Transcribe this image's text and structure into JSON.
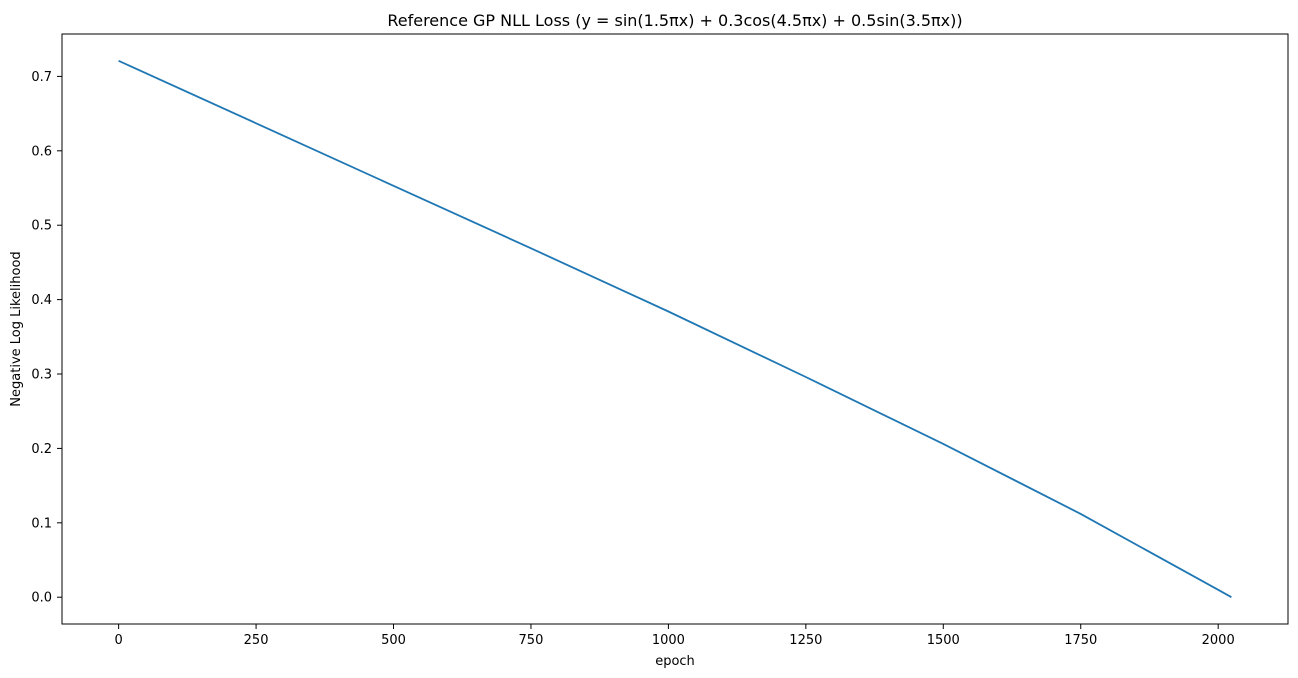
{
  "chart_data": {
    "type": "line",
    "title": "Reference GP NLL Loss (y = sin(1.5πx) + 0.3cos(4.5πx) + 0.5sin(3.5πx))",
    "xlabel": "epoch",
    "ylabel": "Negative Log Likelihood",
    "xlim": [
      -103,
      2127
    ],
    "ylim": [
      -0.036,
      0.757
    ],
    "xticks": [
      0,
      250,
      500,
      750,
      1000,
      1250,
      1500,
      1750,
      2000
    ],
    "xtick_labels": [
      "0",
      "250",
      "500",
      "750",
      "1000",
      "1250",
      "1500",
      "1750",
      "2000"
    ],
    "yticks": [
      0.0,
      0.1,
      0.2,
      0.3,
      0.4,
      0.5,
      0.6,
      0.7
    ],
    "ytick_labels": [
      "0.0",
      "0.1",
      "0.2",
      "0.3",
      "0.4",
      "0.5",
      "0.6",
      "0.7"
    ],
    "grid": false,
    "color": "#1f77b4",
    "series": [
      {
        "x": [
          0,
          250,
          500,
          750,
          1000,
          1250,
          1500,
          1750,
          2000,
          2024
        ],
        "values": [
          0.721,
          0.637,
          0.553,
          0.469,
          0.384,
          0.296,
          0.206,
          0.112,
          0.01,
          0.0
        ]
      }
    ]
  }
}
